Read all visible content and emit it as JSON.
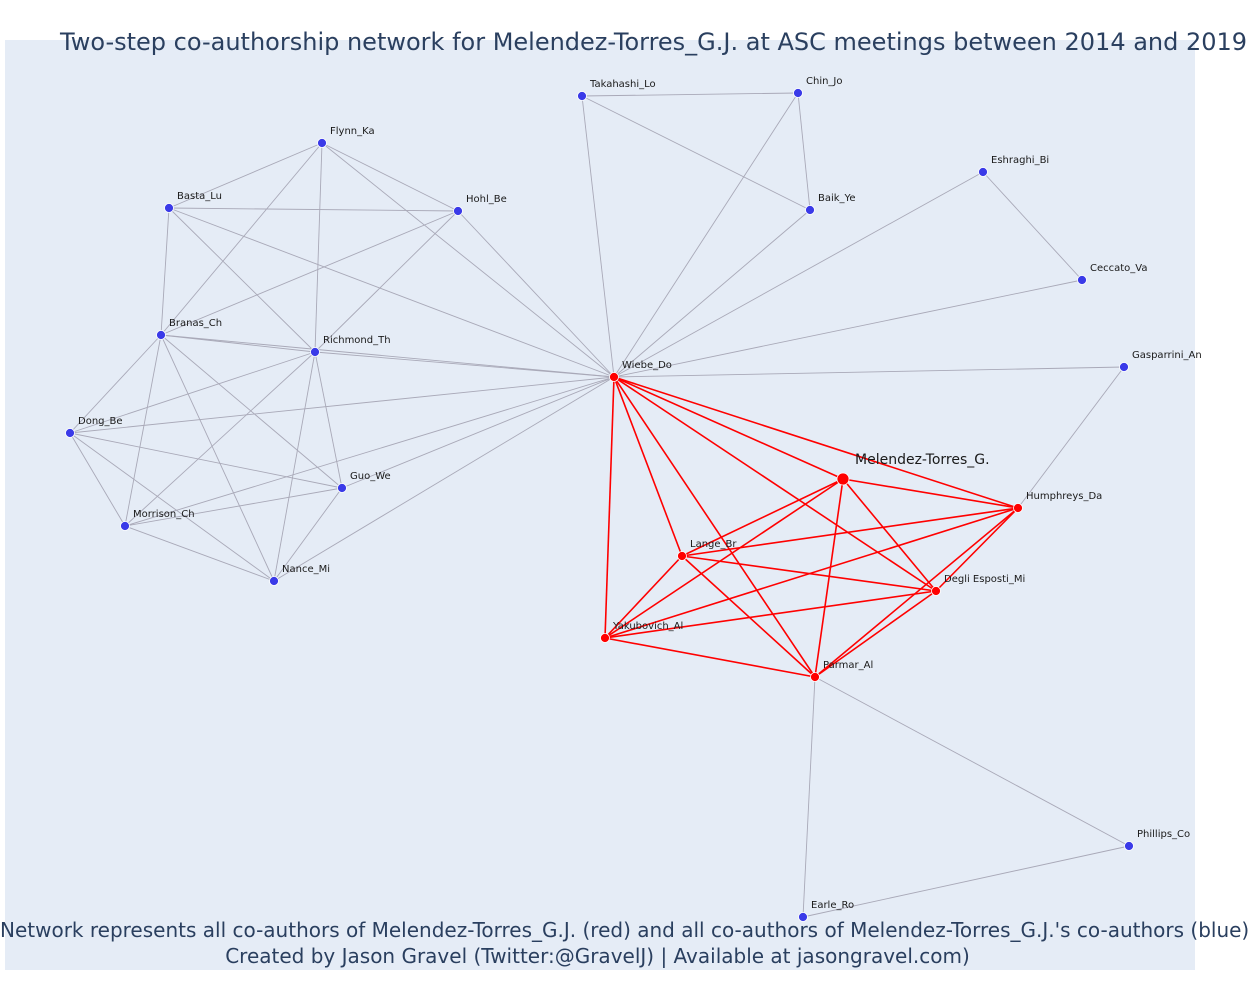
{
  "title": "Two-step co-authorship network for Melendez-Torres_G.J. at ASC meetings between 2014 and 2019",
  "caption": {
    "line1": "Network represents all co-authors of Melendez-Torres_G.J. (red) and all co-authors of Melendez-Torres_G.J.'s co-authors (blue)",
    "line2": "Created by Jason Gravel (Twitter:@GravelJ) | Available at jasongravel.com)"
  },
  "colors": {
    "background": "#e5ecf6",
    "coauthor": "#ff0000",
    "second_step": "#3a3ae8",
    "edge_gray": "#a9a9b8",
    "edge_red": "#ff0000",
    "text": "#2a3f5f"
  },
  "nodes": [
    {
      "id": "Melendez-Torres_G.",
      "label": "Melendez-Torres_G.",
      "group": "focal"
    },
    {
      "id": "Wiebe_Do",
      "label": "Wiebe_Do",
      "group": "coauthor"
    },
    {
      "id": "Humphreys_Da",
      "label": "Humphreys_Da",
      "group": "coauthor"
    },
    {
      "id": "Lange_Br",
      "label": "Lange_Br",
      "group": "coauthor"
    },
    {
      "id": "Degli Esposti_Mi",
      "label": "Degli Esposti_Mi",
      "group": "coauthor"
    },
    {
      "id": "Yakubovich_Al",
      "label": "Yakubovich_Al",
      "group": "coauthor"
    },
    {
      "id": "Parmar_Al",
      "label": "Parmar_Al",
      "group": "coauthor"
    },
    {
      "id": "Takahashi_Lo",
      "label": "Takahashi_Lo",
      "group": "second"
    },
    {
      "id": "Chin_Jo",
      "label": "Chin_Jo",
      "group": "second"
    },
    {
      "id": "Baik_Ye",
      "label": "Baik_Ye",
      "group": "second"
    },
    {
      "id": "Eshraghi_Bi",
      "label": "Eshraghi_Bi",
      "group": "second"
    },
    {
      "id": "Ceccato_Va",
      "label": "Ceccato_Va",
      "group": "second"
    },
    {
      "id": "Gasparrini_An",
      "label": "Gasparrini_An",
      "group": "second"
    },
    {
      "id": "Flynn_Ka",
      "label": "Flynn_Ka",
      "group": "second"
    },
    {
      "id": "Basta_Lu",
      "label": "Basta_Lu",
      "group": "second"
    },
    {
      "id": "Hohl_Be",
      "label": "Hohl_Be",
      "group": "second"
    },
    {
      "id": "Branas_Ch",
      "label": "Branas_Ch",
      "group": "second"
    },
    {
      "id": "Richmond_Th",
      "label": "Richmond_Th",
      "group": "second"
    },
    {
      "id": "Dong_Be",
      "label": "Dong_Be",
      "group": "second"
    },
    {
      "id": "Guo_We",
      "label": "Guo_We",
      "group": "second"
    },
    {
      "id": "Morrison_Ch",
      "label": "Morrison_Ch",
      "group": "second"
    },
    {
      "id": "Nance_Mi",
      "label": "Nance_Mi",
      "group": "second"
    },
    {
      "id": "Phillips_Co",
      "label": "Phillips_Co",
      "group": "second"
    },
    {
      "id": "Earle_Ro",
      "label": "Earle_Ro",
      "group": "second"
    }
  ],
  "red_edges": [
    [
      "Melendez-Torres_G.",
      "Wiebe_Do"
    ],
    [
      "Melendez-Torres_G.",
      "Humphreys_Da"
    ],
    [
      "Melendez-Torres_G.",
      "Lange_Br"
    ],
    [
      "Melendez-Torres_G.",
      "Degli Esposti_Mi"
    ],
    [
      "Melendez-Torres_G.",
      "Yakubovich_Al"
    ],
    [
      "Melendez-Torres_G.",
      "Parmar_Al"
    ],
    [
      "Wiebe_Do",
      "Humphreys_Da"
    ],
    [
      "Wiebe_Do",
      "Lange_Br"
    ],
    [
      "Wiebe_Do",
      "Degli Esposti_Mi"
    ],
    [
      "Wiebe_Do",
      "Yakubovich_Al"
    ],
    [
      "Wiebe_Do",
      "Parmar_Al"
    ],
    [
      "Humphreys_Da",
      "Lange_Br"
    ],
    [
      "Humphreys_Da",
      "Degli Esposti_Mi"
    ],
    [
      "Humphreys_Da",
      "Yakubovich_Al"
    ],
    [
      "Humphreys_Da",
      "Parmar_Al"
    ],
    [
      "Lange_Br",
      "Degli Esposti_Mi"
    ],
    [
      "Lange_Br",
      "Yakubovich_Al"
    ],
    [
      "Lange_Br",
      "Parmar_Al"
    ],
    [
      "Degli Esposti_Mi",
      "Yakubovich_Al"
    ],
    [
      "Degli Esposti_Mi",
      "Parmar_Al"
    ],
    [
      "Yakubovich_Al",
      "Parmar_Al"
    ]
  ],
  "gray_edges": [
    [
      "Takahashi_Lo",
      "Chin_Jo"
    ],
    [
      "Takahashi_Lo",
      "Baik_Ye"
    ],
    [
      "Takahashi_Lo",
      "Wiebe_Do"
    ],
    [
      "Chin_Jo",
      "Baik_Ye"
    ],
    [
      "Chin_Jo",
      "Wiebe_Do"
    ],
    [
      "Baik_Ye",
      "Wiebe_Do"
    ],
    [
      "Eshraghi_Bi",
      "Wiebe_Do"
    ],
    [
      "Eshraghi_Bi",
      "Ceccato_Va"
    ],
    [
      "Ceccato_Va",
      "Wiebe_Do"
    ],
    [
      "Gasparrini_An",
      "Wiebe_Do"
    ],
    [
      "Gasparrini_An",
      "Humphreys_Da"
    ],
    [
      "Flynn_Ka",
      "Basta_Lu"
    ],
    [
      "Flynn_Ka",
      "Hohl_Be"
    ],
    [
      "Flynn_Ka",
      "Branas_Ch"
    ],
    [
      "Flynn_Ka",
      "Richmond_Th"
    ],
    [
      "Flynn_Ka",
      "Wiebe_Do"
    ],
    [
      "Basta_Lu",
      "Hohl_Be"
    ],
    [
      "Basta_Lu",
      "Branas_Ch"
    ],
    [
      "Basta_Lu",
      "Richmond_Th"
    ],
    [
      "Basta_Lu",
      "Wiebe_Do"
    ],
    [
      "Hohl_Be",
      "Branas_Ch"
    ],
    [
      "Hohl_Be",
      "Richmond_Th"
    ],
    [
      "Hohl_Be",
      "Wiebe_Do"
    ],
    [
      "Branas_Ch",
      "Richmond_Th"
    ],
    [
      "Branas_Ch",
      "Wiebe_Do"
    ],
    [
      "Branas_Ch",
      "Dong_Be"
    ],
    [
      "Branas_Ch",
      "Guo_We"
    ],
    [
      "Branas_Ch",
      "Morrison_Ch"
    ],
    [
      "Branas_Ch",
      "Nance_Mi"
    ],
    [
      "Richmond_Th",
      "Wiebe_Do"
    ],
    [
      "Richmond_Th",
      "Dong_Be"
    ],
    [
      "Richmond_Th",
      "Guo_We"
    ],
    [
      "Richmond_Th",
      "Morrison_Ch"
    ],
    [
      "Richmond_Th",
      "Nance_Mi"
    ],
    [
      "Dong_Be",
      "Wiebe_Do"
    ],
    [
      "Dong_Be",
      "Guo_We"
    ],
    [
      "Dong_Be",
      "Morrison_Ch"
    ],
    [
      "Dong_Be",
      "Nance_Mi"
    ],
    [
      "Guo_We",
      "Morrison_Ch"
    ],
    [
      "Guo_We",
      "Nance_Mi"
    ],
    [
      "Guo_We",
      "Wiebe_Do"
    ],
    [
      "Morrison_Ch",
      "Nance_Mi"
    ],
    [
      "Morrison_Ch",
      "Wiebe_Do"
    ],
    [
      "Nance_Mi",
      "Wiebe_Do"
    ],
    [
      "Parmar_Al",
      "Phillips_Co"
    ],
    [
      "Parmar_Al",
      "Earle_Ro"
    ],
    [
      "Earle_Ro",
      "Phillips_Co"
    ]
  ]
}
